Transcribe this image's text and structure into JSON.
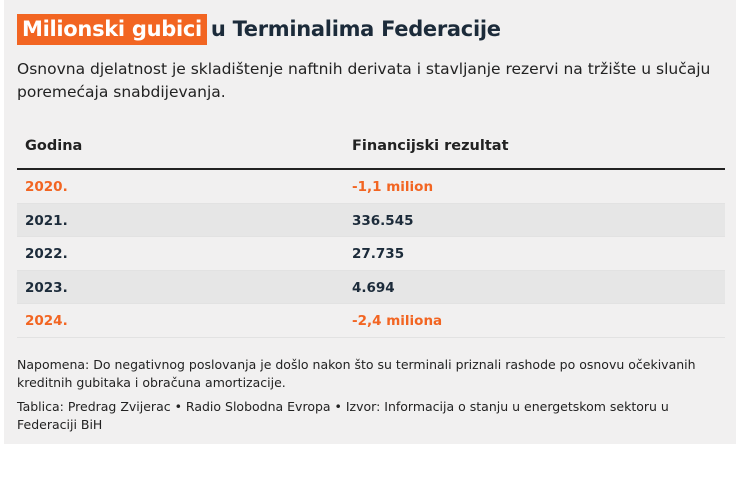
{
  "header": {
    "title_highlight": "Milionski gubici",
    "title_rest": "u Terminalima Federacije",
    "subtitle": "Osnovna djelatnost je skladištenje naftnih derivata i stavljanje rezervi na tržište u slučaju poremećaja snabdijevanja."
  },
  "colors": {
    "accent": "#f26522",
    "text_dark": "#1c2b3a",
    "background": "#f1f0f0"
  },
  "chart_data": {
    "type": "table",
    "columns": [
      "Godina",
      "Financijski rezultat"
    ],
    "rows": [
      {
        "year": "2020.",
        "value": "-1,1 milion",
        "negative": true
      },
      {
        "year": "2021.",
        "value": "336.545",
        "negative": false
      },
      {
        "year": "2022.",
        "value": "27.735",
        "negative": false
      },
      {
        "year": "2023.",
        "value": "4.694",
        "negative": false
      },
      {
        "year": "2024.",
        "value": "-2,4 miliona",
        "negative": true
      }
    ]
  },
  "footer": {
    "note": "Napomena: Do negativnog poslovanja je došlo nakon što su terminali priznali rashode po osnovu očekivanih kreditnih gubitaka i obračuna amortizacije.",
    "source": "Tablica: Predrag Zvijerac • Radio Slobodna Evropa • Izvor: Informacija o stanju u energetskom sektoru u Federaciji BiH"
  }
}
